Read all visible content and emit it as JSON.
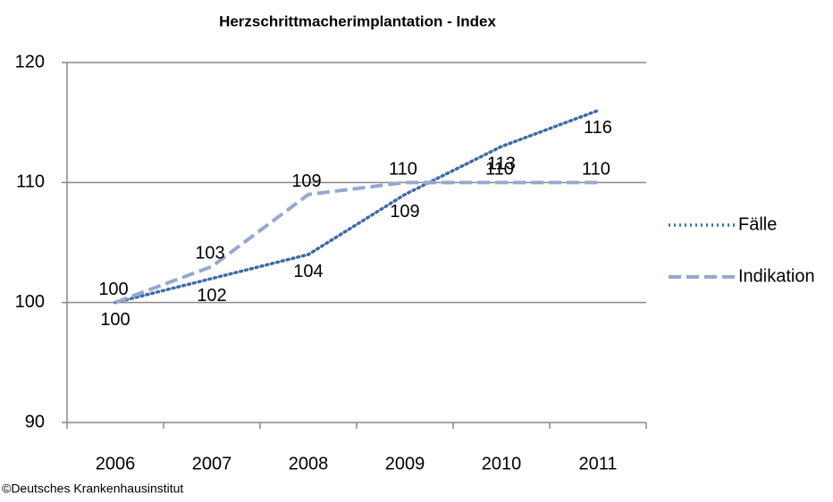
{
  "chart_data": {
    "type": "line",
    "title": "Herzschrittmacherimplantation  - Index",
    "categories": [
      "2006",
      "2007",
      "2008",
      "2009",
      "2010",
      "2011"
    ],
    "series": [
      {
        "name": "Fälle",
        "color": "#3f6aa6",
        "dash": "dotted",
        "values": [
          100,
          102,
          104,
          109,
          113,
          116
        ]
      },
      {
        "name": "Indikation",
        "color": "#95a9cf",
        "dash": "dashed",
        "values": [
          100,
          103,
          109,
          110,
          110,
          110
        ]
      }
    ],
    "ylim": [
      90,
      120
    ],
    "yticks": [
      90,
      100,
      110,
      120
    ],
    "grid": true,
    "legend": "right",
    "source": "©Deutsches Krankenhausinstitut"
  }
}
